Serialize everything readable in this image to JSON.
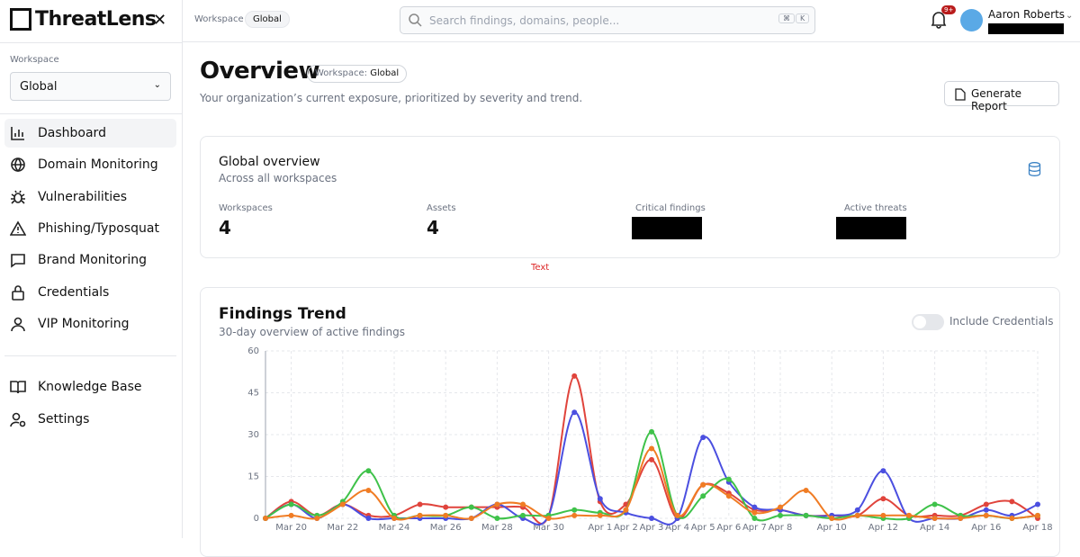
{
  "sidebar": {
    "logo": "ThreatLens",
    "workspace_label": "Workspace",
    "workspace_select": "Global",
    "nav": [
      "Dashboard",
      "Domain Monitoring",
      "Vulnerabilities",
      "Phishing/Typosquat",
      "Brand Monitoring",
      "Credentials",
      "VIP Monitoring"
    ],
    "nav_secondary": [
      "Knowledge Base",
      "Settings"
    ]
  },
  "topbar": {
    "breadcrumb_label": "Workspace",
    "breadcrumb_value": "Global",
    "search_placeholder": "Search findings, domains, people...",
    "shortcut_keys": [
      "⌘",
      "K"
    ],
    "notification_badge": "9+",
    "user_name": "Aaron Roberts"
  },
  "header": {
    "title": "Overview",
    "badge_label": "Workspace:",
    "badge_value": "Global",
    "subtitle": "Your organization’s current exposure, prioritized by severity and trend.",
    "button": "Generate Report"
  },
  "overview_card": {
    "title": "Global overview",
    "subtitle": "Across all workspaces",
    "stats": [
      {
        "label": "Workspaces",
        "value": "4"
      },
      {
        "label": "Assets",
        "value": "4"
      },
      {
        "label": "Critical findings"
      },
      {
        "label": "Active threats"
      }
    ]
  },
  "note": "Text",
  "trend_card": {
    "title": "Findings Trend",
    "subtitle": "30-day overview of active findings",
    "toggle_label": "Include Credentials",
    "chart_data": {
      "type": "line",
      "categories": [
        null,
        "Mar 20",
        null,
        "Mar 22",
        null,
        "Mar 24",
        null,
        "Mar 26",
        null,
        "Mar 28",
        null,
        "Mar 30",
        null,
        "Apr 1",
        "Apr 2",
        "Apr 3",
        "Apr 4",
        "Apr 5",
        "Apr 6",
        "Apr 7",
        "Apr 8",
        null,
        "Apr 10",
        null,
        "Apr 12",
        null,
        "Apr 14",
        null,
        "Apr 16",
        null,
        "Apr 18"
      ],
      "ylim": [
        0,
        60
      ],
      "yticks": [
        0,
        15,
        30,
        45,
        60
      ],
      "grid": true,
      "series": [
        {
          "color": "#e0443c",
          "values": [
            0,
            6,
            1,
            5,
            1,
            1,
            5,
            4,
            4,
            4,
            4,
            1,
            51,
            6,
            5,
            21,
            0,
            12,
            9,
            3,
            3,
            1,
            1,
            1,
            7,
            1,
            1,
            1,
            5,
            6,
            0
          ]
        },
        {
          "color": "#4b4fe0",
          "values": [
            0,
            5,
            0,
            5,
            0,
            0,
            0,
            0,
            0,
            5,
            0,
            1,
            38,
            7,
            2,
            0,
            0,
            29,
            13,
            4,
            3,
            1,
            1,
            3,
            17,
            0,
            0,
            0,
            3,
            1,
            5
          ]
        },
        {
          "color": "#3fc24a",
          "values": [
            0,
            5,
            1,
            6,
            17,
            1,
            1,
            1,
            4,
            0,
            1,
            1,
            3,
            2,
            3,
            31,
            1,
            8,
            14,
            0,
            1,
            1,
            0,
            1,
            0,
            0,
            5,
            1,
            1,
            0,
            1
          ]
        },
        {
          "color": "#f07c24",
          "values": [
            0,
            1,
            0,
            5,
            10,
            0,
            1,
            1,
            0,
            5,
            5,
            0,
            1,
            1,
            3,
            25,
            1,
            12,
            8,
            2,
            4,
            10,
            0,
            1,
            1,
            1,
            0,
            0,
            1,
            0,
            1
          ]
        }
      ]
    }
  }
}
